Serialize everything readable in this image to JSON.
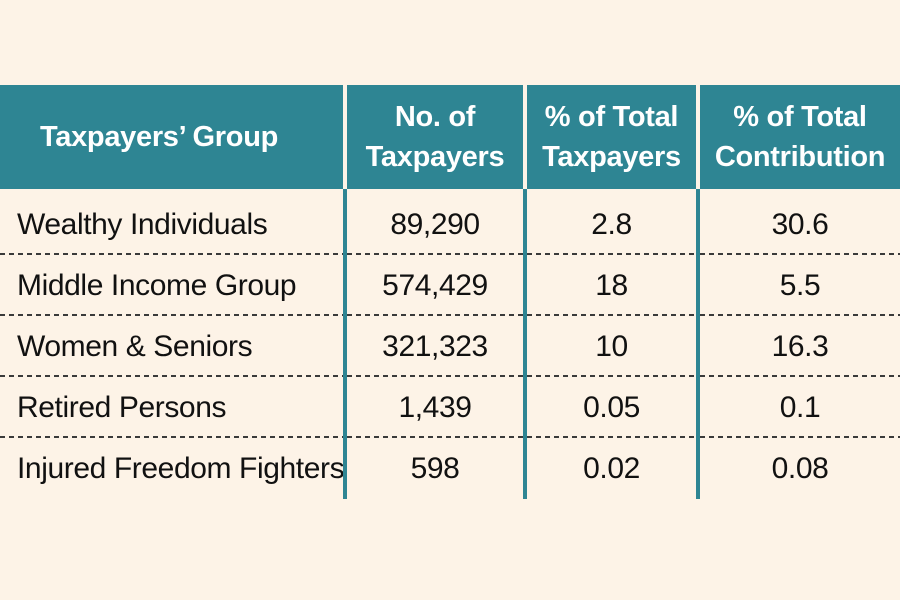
{
  "chart_data": {
    "type": "table",
    "columns": [
      "Taxpayers’ Group",
      "No. of\nTaxpayers",
      "% of Total\nTaxpayers",
      "% of Total\nContribution"
    ],
    "rows": [
      [
        "Wealthy Individuals",
        "89,290",
        "2.8",
        "30.6"
      ],
      [
        "Middle Income Group",
        "574,429",
        "18",
        "5.5"
      ],
      [
        "Women & Seniors",
        "321,323",
        "10",
        "16.3"
      ],
      [
        "Retired Persons",
        "1,439",
        "0.05",
        "0.1"
      ],
      [
        "Injured Freedom Fighters",
        "598",
        "0.02",
        "0.08"
      ]
    ],
    "colors": {
      "header_bg": "#2e8593",
      "header_text": "#ffffff",
      "page_bg": "#fdf3e7",
      "text": "#111111"
    }
  }
}
